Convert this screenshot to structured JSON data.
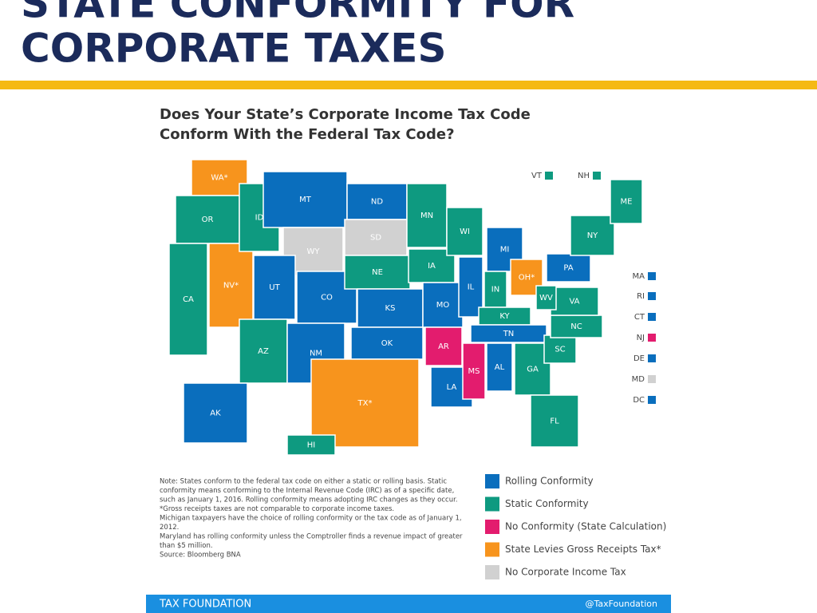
{
  "header": {
    "title_lines": [
      "STATE CONFORMITY FOR",
      "CORPORATE TAXES"
    ]
  },
  "map": {
    "title_lines": [
      "Does Your State’s Corporate Income Tax Code",
      "Conform With the Federal Tax Code?"
    ],
    "states": [
      {
        "label": "WA*",
        "color": "#f7941d"
      },
      {
        "label": "OR",
        "color": "#0e9a80"
      },
      {
        "label": "CA",
        "color": "#0e9a80"
      },
      {
        "label": "NV*",
        "color": "#f7941d"
      },
      {
        "label": "ID",
        "color": "#0e9a80"
      },
      {
        "label": "MT",
        "color": "#0a6ebd"
      },
      {
        "label": "WY",
        "color": "#d1d1d1"
      },
      {
        "label": "UT",
        "color": "#0a6ebd"
      },
      {
        "label": "CO",
        "color": "#0a6ebd"
      },
      {
        "label": "AZ",
        "color": "#0e9a80"
      },
      {
        "label": "NM",
        "color": "#0a6ebd"
      },
      {
        "label": "ND",
        "color": "#0a6ebd"
      },
      {
        "label": "SD",
        "color": "#d1d1d1"
      },
      {
        "label": "NE",
        "color": "#0e9a80"
      },
      {
        "label": "KS",
        "color": "#0a6ebd"
      },
      {
        "label": "OK",
        "color": "#0a6ebd"
      },
      {
        "label": "TX*",
        "color": "#f7941d"
      },
      {
        "label": "MN",
        "color": "#0e9a80"
      },
      {
        "label": "IA",
        "color": "#0e9a80"
      },
      {
        "label": "MO",
        "color": "#0a6ebd"
      },
      {
        "label": "AR",
        "color": "#e31c6e"
      },
      {
        "label": "LA",
        "color": "#0a6ebd"
      },
      {
        "label": "WI",
        "color": "#0e9a80"
      },
      {
        "label": "IL",
        "color": "#0a6ebd"
      },
      {
        "label": "MS",
        "color": "#e31c6e"
      },
      {
        "label": "MI",
        "color": "#0a6ebd"
      },
      {
        "label": "IN",
        "color": "#0e9a80"
      },
      {
        "label": "OH*",
        "color": "#f7941d"
      },
      {
        "label": "KY",
        "color": "#0e9a80"
      },
      {
        "label": "TN",
        "color": "#0a6ebd"
      },
      {
        "label": "AL",
        "color": "#0a6ebd"
      },
      {
        "label": "GA",
        "color": "#0e9a80"
      },
      {
        "label": "FL",
        "color": "#0e9a80"
      },
      {
        "label": "SC",
        "color": "#0e9a80"
      },
      {
        "label": "NC",
        "color": "#0e9a80"
      },
      {
        "label": "VA",
        "color": "#0e9a80"
      },
      {
        "label": "WV",
        "color": "#0e9a80"
      },
      {
        "label": "PA",
        "color": "#0a6ebd"
      },
      {
        "label": "NY",
        "color": "#0e9a80"
      },
      {
        "label": "ME",
        "color": "#0e9a80"
      },
      {
        "label": "AK",
        "color": "#0a6ebd"
      },
      {
        "label": "HI",
        "color": "#0e9a80"
      }
    ],
    "small_states": [
      {
        "label": "VT",
        "color": "#0e9a80"
      },
      {
        "label": "NH",
        "color": "#0e9a80"
      },
      {
        "label": "MA",
        "color": "#0a6ebd"
      },
      {
        "label": "RI",
        "color": "#0a6ebd"
      },
      {
        "label": "CT",
        "color": "#0a6ebd"
      },
      {
        "label": "NJ",
        "color": "#e31c6e"
      },
      {
        "label": "DE",
        "color": "#0a6ebd"
      },
      {
        "label": "MD",
        "color": "#d1d1d1"
      },
      {
        "label": "DC",
        "color": "#0a6ebd"
      }
    ]
  },
  "note_lines": [
    "Note: States conform to the federal tax code on either a static or rolling basis. Static",
    "conformity means conforming to the Internal Revenue Code (IRC) as of a specific date,",
    "such as January 1, 2016. Rolling conformity means adopting IRC changes as they occur.",
    "*Gross receipts taxes are not comparable to corporate income taxes.",
    "Michigan taxpayers have the choice of rolling conformity or the tax code as of January 1,",
    "2012.",
    "Maryland has rolling conformity unless the Comptroller finds a revenue impact of greater",
    "than $5 million.",
    "Source: Bloomberg BNA"
  ],
  "legend": [
    {
      "label": "Rolling Conformity",
      "color": "#0a6ebd"
    },
    {
      "label": "Static Conformity",
      "color": "#0e9a80"
    },
    {
      "label": "No Conformity (State Calculation)",
      "color": "#e31c6e"
    },
    {
      "label": "State Levies Gross Receipts Tax*",
      "color": "#f7941d"
    },
    {
      "label": "No Corporate Income Tax",
      "color": "#d1d1d1"
    }
  ],
  "footer": {
    "left": "TAX FOUNDATION",
    "right": "@TaxFoundation"
  }
}
